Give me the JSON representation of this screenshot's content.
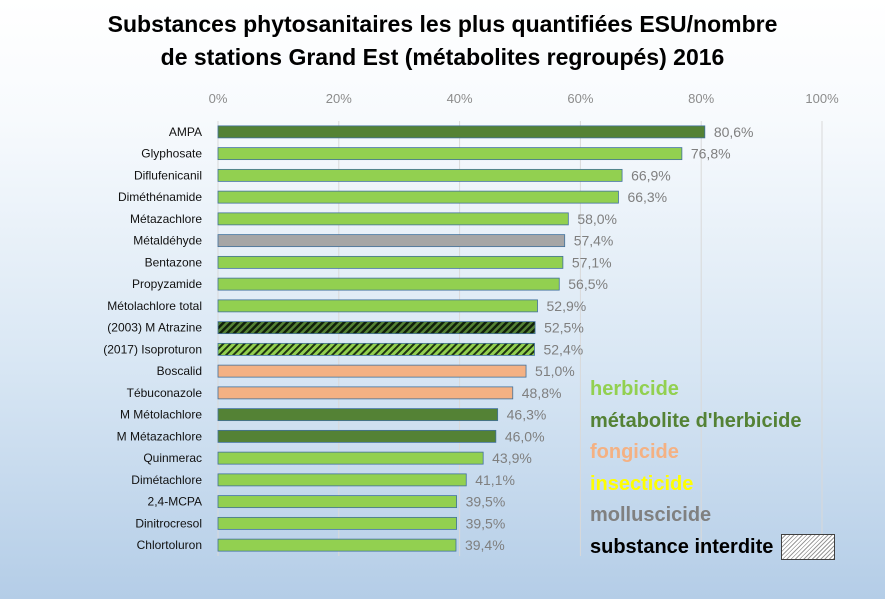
{
  "chart_data": {
    "type": "bar",
    "orientation": "horizontal",
    "title_lines": [
      "Substances phytosanitaires les plus quantifiées ESU/nombre",
      "de stations Grand Est (métabolites regroupés) 2016"
    ],
    "xlim": [
      0,
      100
    ],
    "x_ticks": [
      "0%",
      "20%",
      "40%",
      "60%",
      "80%",
      "100%"
    ],
    "x_tick_values": [
      0,
      20,
      40,
      60,
      80,
      100
    ],
    "grid": "vertical",
    "categories": [
      "AMPA",
      "Glyphosate",
      "Diflufenicanil",
      "Diméthénamide",
      "Métazachlore",
      "Métaldéhyde",
      "Bentazone",
      "Propyzamide",
      "Métolachlore total",
      "(2003) M Atrazine",
      "(2017) Isoproturon",
      "Boscalid",
      "Tébuconazole",
      "M Métolachlore",
      "M Métazachlore",
      "Quinmerac",
      "Dimétachlore",
      "2,4-MCPA",
      "Dinitrocresol",
      "Chlortoluron"
    ],
    "values": [
      80.6,
      76.8,
      66.9,
      66.3,
      58.0,
      57.4,
      57.1,
      56.5,
      52.9,
      52.5,
      52.4,
      51.0,
      48.8,
      46.3,
      46.0,
      43.9,
      41.1,
      39.5,
      39.5,
      39.4
    ],
    "value_labels": [
      "80,6%",
      "76,8%",
      "66,9%",
      "66,3%",
      "58,0%",
      "57,4%",
      "57,1%",
      "56,5%",
      "52,9%",
      "52,5%",
      "52,4%",
      "51,0%",
      "48,8%",
      "46,3%",
      "46,0%",
      "43,9%",
      "41,1%",
      "39,5%",
      "39,5%",
      "39,4%"
    ],
    "groups": [
      "metabolite",
      "herbicide",
      "herbicide",
      "herbicide",
      "herbicide",
      "molluscicide",
      "herbicide",
      "herbicide",
      "herbicide",
      "metabolite",
      "herbicide",
      "fongicide",
      "fongicide",
      "metabolite",
      "metabolite",
      "herbicide",
      "herbicide",
      "herbicide",
      "herbicide",
      "herbicide"
    ],
    "banned": [
      false,
      false,
      false,
      false,
      false,
      false,
      false,
      false,
      false,
      true,
      true,
      false,
      false,
      false,
      false,
      false,
      false,
      false,
      false,
      false
    ],
    "group_colors": {
      "herbicide": "#92d050",
      "metabolite": "#548235",
      "fongicide": "#f4b183",
      "insecticide": "#ffff00",
      "molluscicide": "#a6a6a6"
    },
    "legend": {
      "placement": "bottom-right",
      "items": [
        {
          "label": "herbicide",
          "color": "#92d050"
        },
        {
          "label": "métabolite d'herbicide",
          "color": "#548235"
        },
        {
          "label": "fongicide",
          "color": "#f4b183"
        },
        {
          "label": "insecticide",
          "color": "#ffff00"
        },
        {
          "label": "molluscicide",
          "color": "#808080"
        },
        {
          "label": "substance interdite",
          "color": "#000000",
          "pattern": "hatch"
        }
      ]
    }
  }
}
